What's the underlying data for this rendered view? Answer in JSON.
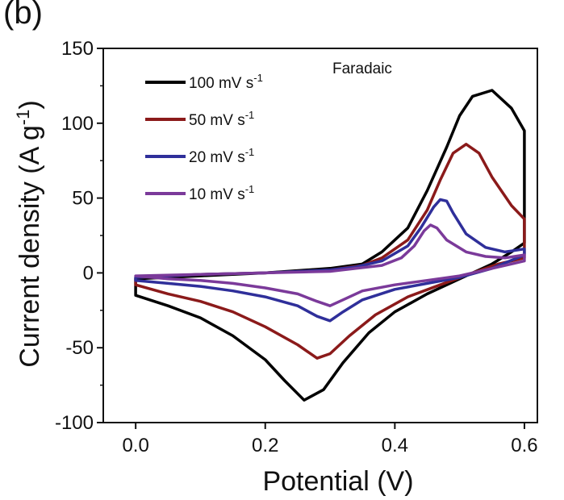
{
  "panel_label": "(b)",
  "chart_data": {
    "type": "line",
    "title": "",
    "xlabel": "Potential (V)",
    "ylabel_main": "Current density (A g",
    "ylabel_sup": "-1",
    "ylabel_end": ")",
    "xlim": [
      -0.05,
      0.62
    ],
    "ylim": [
      -100,
      150
    ],
    "xticks": [
      0.0,
      0.2,
      0.4,
      0.6
    ],
    "xtick_labels": [
      "0.0",
      "0.2",
      "0.4",
      "0.6"
    ],
    "yticks": [
      -100,
      -50,
      0,
      50,
      100,
      150
    ],
    "ytick_labels": [
      "-100",
      "-50",
      "0",
      "50",
      "100",
      "150"
    ],
    "grid": false,
    "legend_position": "top-left",
    "annotation": "Faradaic",
    "series": [
      {
        "name": "100 mV s",
        "name_sup": "-1",
        "color": "#000000",
        "points": [
          [
            0.0,
            -15
          ],
          [
            0.05,
            -22
          ],
          [
            0.1,
            -30
          ],
          [
            0.15,
            -42
          ],
          [
            0.2,
            -58
          ],
          [
            0.23,
            -72
          ],
          [
            0.26,
            -85
          ],
          [
            0.29,
            -78
          ],
          [
            0.32,
            -60
          ],
          [
            0.36,
            -40
          ],
          [
            0.4,
            -26
          ],
          [
            0.45,
            -14
          ],
          [
            0.5,
            -4
          ],
          [
            0.55,
            6
          ],
          [
            0.58,
            14
          ],
          [
            0.6,
            20
          ],
          [
            0.6,
            95
          ],
          [
            0.58,
            110
          ],
          [
            0.55,
            122
          ],
          [
            0.52,
            118
          ],
          [
            0.5,
            105
          ],
          [
            0.48,
            84
          ],
          [
            0.45,
            55
          ],
          [
            0.42,
            30
          ],
          [
            0.38,
            14
          ],
          [
            0.35,
            6
          ],
          [
            0.3,
            3
          ],
          [
            0.2,
            0
          ],
          [
            0.1,
            -2
          ],
          [
            0.0,
            -4
          ]
        ]
      },
      {
        "name": "50 mV s",
        "name_sup": "-1",
        "color": "#8b1a1a",
        "points": [
          [
            0.0,
            -8
          ],
          [
            0.05,
            -14
          ],
          [
            0.1,
            -19
          ],
          [
            0.15,
            -26
          ],
          [
            0.2,
            -36
          ],
          [
            0.25,
            -48
          ],
          [
            0.28,
            -57
          ],
          [
            0.3,
            -54
          ],
          [
            0.33,
            -42
          ],
          [
            0.37,
            -28
          ],
          [
            0.42,
            -16
          ],
          [
            0.47,
            -8
          ],
          [
            0.52,
            0
          ],
          [
            0.56,
            6
          ],
          [
            0.6,
            10
          ],
          [
            0.6,
            36
          ],
          [
            0.58,
            45
          ],
          [
            0.55,
            64
          ],
          [
            0.53,
            80
          ],
          [
            0.51,
            86
          ],
          [
            0.49,
            80
          ],
          [
            0.47,
            62
          ],
          [
            0.45,
            42
          ],
          [
            0.42,
            22
          ],
          [
            0.38,
            10
          ],
          [
            0.35,
            5
          ],
          [
            0.3,
            2
          ],
          [
            0.2,
            0
          ],
          [
            0.1,
            -1
          ],
          [
            0.0,
            -3
          ]
        ]
      },
      {
        "name": "20 mV s",
        "name_sup": "-1",
        "color": "#2f2f9a",
        "points": [
          [
            0.0,
            -5
          ],
          [
            0.05,
            -7
          ],
          [
            0.1,
            -9
          ],
          [
            0.15,
            -12
          ],
          [
            0.2,
            -16
          ],
          [
            0.25,
            -22
          ],
          [
            0.28,
            -29
          ],
          [
            0.3,
            -32
          ],
          [
            0.32,
            -26
          ],
          [
            0.35,
            -18
          ],
          [
            0.4,
            -11
          ],
          [
            0.45,
            -7
          ],
          [
            0.5,
            -3
          ],
          [
            0.55,
            3
          ],
          [
            0.6,
            12
          ],
          [
            0.6,
            16
          ],
          [
            0.57,
            14
          ],
          [
            0.54,
            17
          ],
          [
            0.51,
            26
          ],
          [
            0.49,
            40
          ],
          [
            0.48,
            48
          ],
          [
            0.47,
            49
          ],
          [
            0.46,
            44
          ],
          [
            0.44,
            30
          ],
          [
            0.42,
            18
          ],
          [
            0.38,
            8
          ],
          [
            0.34,
            4
          ],
          [
            0.3,
            2
          ],
          [
            0.2,
            0
          ],
          [
            0.1,
            -1
          ],
          [
            0.0,
            -3
          ]
        ]
      },
      {
        "name": "10 mV s",
        "name_sup": "-1",
        "color": "#7b3a9a",
        "points": [
          [
            0.0,
            -2
          ],
          [
            0.05,
            -4
          ],
          [
            0.1,
            -5
          ],
          [
            0.15,
            -7
          ],
          [
            0.2,
            -10
          ],
          [
            0.25,
            -14
          ],
          [
            0.28,
            -19
          ],
          [
            0.3,
            -22
          ],
          [
            0.32,
            -18
          ],
          [
            0.35,
            -12
          ],
          [
            0.4,
            -8
          ],
          [
            0.45,
            -5
          ],
          [
            0.5,
            -2
          ],
          [
            0.55,
            3
          ],
          [
            0.6,
            8
          ],
          [
            0.6,
            12
          ],
          [
            0.57,
            10
          ],
          [
            0.54,
            11
          ],
          [
            0.51,
            14
          ],
          [
            0.48,
            22
          ],
          [
            0.465,
            30
          ],
          [
            0.455,
            32
          ],
          [
            0.445,
            28
          ],
          [
            0.43,
            18
          ],
          [
            0.41,
            10
          ],
          [
            0.38,
            5
          ],
          [
            0.34,
            3
          ],
          [
            0.3,
            1
          ],
          [
            0.2,
            0
          ],
          [
            0.1,
            -1
          ],
          [
            0.0,
            -2
          ]
        ]
      }
    ]
  }
}
